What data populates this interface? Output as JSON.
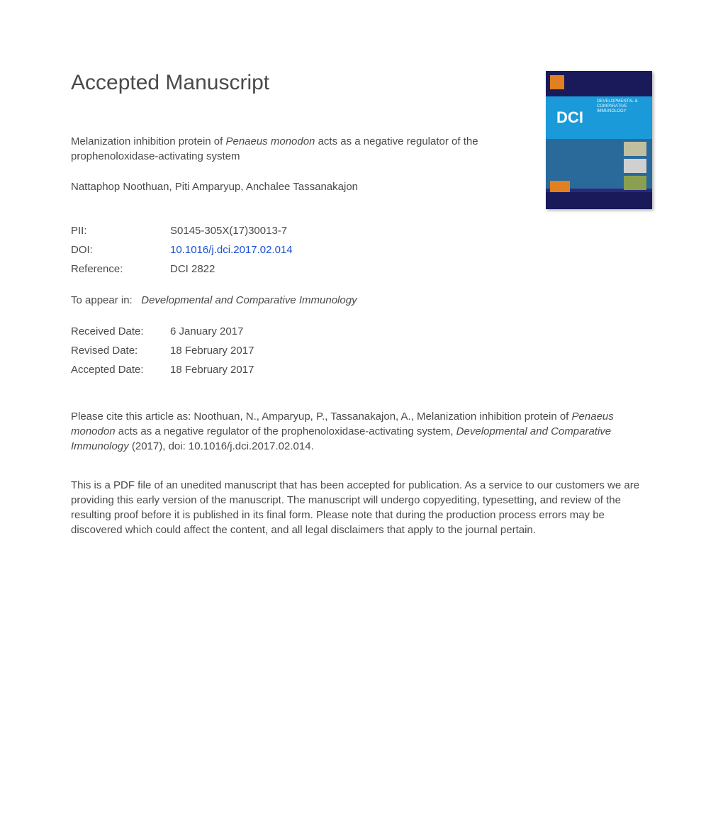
{
  "heading": "Accepted Manuscript",
  "title_before_species": "Melanization inhibition protein of ",
  "title_species": "Penaeus monodon",
  "title_after_species": " acts as a negative regulator of the prophenoloxidase-activating system",
  "authors": "Nattaphop Noothuan, Piti Amparyup, Anchalee Tassanakajon",
  "meta": {
    "pii_label": "PII:",
    "pii_value": "S0145-305X(17)30013-7",
    "doi_label": "DOI:",
    "doi_value": "10.1016/j.dci.2017.02.014",
    "ref_label": "Reference:",
    "ref_value": "DCI 2822"
  },
  "appear_label": "To appear in:",
  "appear_journal": "Developmental and Comparative Immunology",
  "dates": {
    "received_label": "Received Date:",
    "received_value": "6 January 2017",
    "revised_label": "Revised Date:",
    "revised_value": "18 February 2017",
    "accepted_label": "Accepted Date:",
    "accepted_value": "18 February 2017"
  },
  "citation_prefix": "Please cite this article as: Noothuan, N., Amparyup, P., Tassanakajon, A., Melanization inhibition protein of ",
  "citation_species": "Penaeus monodon",
  "citation_mid": " acts as a negative regulator of the prophenoloxidase-activating system, ",
  "citation_journal": "Developmental and Comparative Immunology",
  "citation_suffix": " (2017), doi: 10.1016/j.dci.2017.02.014.",
  "disclaimer": "This is a PDF file of an unedited manuscript that has been accepted for publication. As a service to our customers we are providing this early version of the manuscript. The manuscript will undergo copyediting, typesetting, and review of the resulting proof before it is published in its final form. Please note that during the production process errors may be discovered which could affect the content, and all legal disclaimers that apply to the journal pertain.",
  "cover": {
    "dci": "DCI",
    "subtitle": "DEVELOPMENTAL & COMPARATIVE IMMUNOLOGY"
  }
}
